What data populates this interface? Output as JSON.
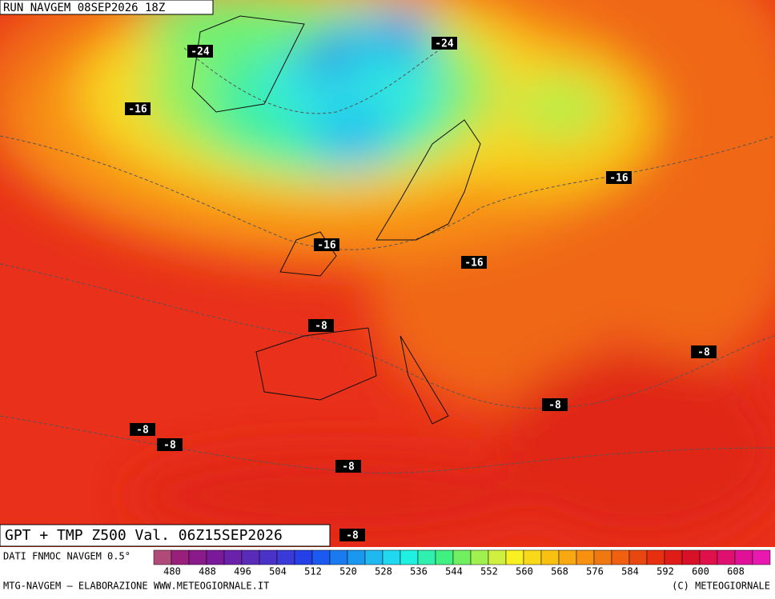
{
  "header": {
    "run": "RUN NAVGEM 08SEP2026 18Z"
  },
  "map": {
    "title": "GPT + TMP Z500 Val. 06Z15SEP2026",
    "contour_labels": [
      "-24",
      "-24",
      "-16",
      "-16",
      "-16",
      "-16",
      "-8",
      "-8",
      "-8",
      "-8",
      "-8",
      "-8",
      "-8"
    ]
  },
  "colorbar": {
    "source": "DATI FNMOC NAVGEM 0.5°",
    "colors": [
      "#b04a78",
      "#98207a",
      "#8a1a8a",
      "#7a1a9a",
      "#6a22aa",
      "#5a2ab8",
      "#4a32c8",
      "#3a3ad8",
      "#2440e6",
      "#1a5af0",
      "#1a7af0",
      "#1a98f0",
      "#20b8f0",
      "#20d8f0",
      "#20f0e0",
      "#30f0b0",
      "#40f080",
      "#70f060",
      "#a0f050",
      "#d0f040",
      "#f8f020",
      "#f8d818",
      "#f8c010",
      "#f8a810",
      "#f89010",
      "#f07810",
      "#f06010",
      "#e84810",
      "#e83010",
      "#e01c18",
      "#d81028",
      "#e0104a",
      "#e01070",
      "#e01098",
      "#e818b0"
    ],
    "labels": [
      480,
      488,
      496,
      504,
      512,
      520,
      528,
      536,
      544,
      552,
      560,
      568,
      576,
      584,
      592,
      600,
      608
    ]
  },
  "footer": {
    "left": "MTG-NAVGEM – ELABORAZIONE WWW.METEOGIORNALE.IT",
    "right": "(C) METEOGIORNALE"
  }
}
